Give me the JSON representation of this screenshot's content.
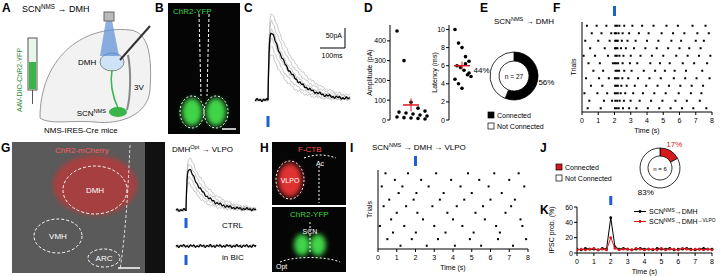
{
  "panels": {
    "A": {
      "letter": "A",
      "title": [
        {
          "t": "SCN"
        },
        {
          "t": "NMS",
          "sup": true
        },
        {
          "t": " → DMH"
        }
      ],
      "target": "DMH",
      "ventricle": "3V",
      "virus": "AAV-DIO-ChR2-YFP",
      "source": [
        {
          "t": "SCN"
        },
        {
          "t": "NMS",
          "sup": true
        }
      ],
      "mice": "NMS-IRES-Cre mice"
    },
    "B": {
      "letter": "B",
      "label": "ChR2-YFP"
    },
    "C": {
      "letter": "C",
      "scale_current": "50pA",
      "scale_time": "100ms"
    },
    "G": {
      "letter": "G",
      "label": "ChR2-mCherry",
      "regions": [
        "DMH",
        "VMH",
        "ARC"
      ],
      "trace_title": [
        {
          "t": "DMH"
        },
        {
          "t": "Opt",
          "sup": true
        },
        {
          "t": " → VLPO"
        }
      ],
      "control": "CTRL",
      "drug": "in BIC"
    },
    "H": {
      "letter": "H",
      "tracer": "F-CTB",
      "tracer_regions": [
        "VLPO",
        "Ac"
      ],
      "label": "ChR2-YFP",
      "regions": [
        "SCN",
        "Opt"
      ]
    }
  },
  "chart_data": [
    {
      "type": "strip",
      "panel_label": "D",
      "ylabel": "Amplitude (pA)",
      "values": [
        450,
        300,
        90,
        60,
        45,
        40,
        35,
        30,
        25,
        20,
        15,
        12,
        10,
        8,
        5
      ],
      "mean": 76,
      "sem": 33,
      "ylim": [
        0,
        480
      ],
      "yticks": [
        0,
        100,
        200,
        300,
        400
      ],
      "color": "#000000"
    },
    {
      "type": "strip",
      "ylabel": "Latency (ms)",
      "values": [
        10,
        8.5,
        8,
        7,
        6.5,
        6,
        5.8,
        5.5,
        5,
        4.8,
        4.5,
        4,
        3.5,
        6.2,
        5.2
      ],
      "mean": 6.0,
      "sem": 0.45,
      "ylim": [
        0,
        10.5
      ],
      "yticks": [
        0,
        2,
        4,
        6,
        8,
        10
      ],
      "color": "#000000"
    },
    {
      "type": "pie",
      "panel_label": "E",
      "title": [
        {
          "t": "SCN"
        },
        {
          "t": "NMS",
          "sup": true
        },
        {
          "t": " → DMH"
        }
      ],
      "categories": [
        "Connected",
        "Not Connected"
      ],
      "values": [
        56,
        44
      ],
      "value_labels": [
        "56%",
        "44%"
      ],
      "colors": [
        "#000000",
        "#ffffff"
      ],
      "annotation": "n = 27",
      "data_labels": true
    },
    {
      "type": "raster",
      "panel_label": "F",
      "xlabel": "Time (s)",
      "ylabel": "Trials",
      "xlim": [
        0,
        8
      ],
      "xticks": [
        0,
        1,
        2,
        3,
        4,
        5,
        6,
        7,
        8
      ],
      "ylim": [
        0.5,
        12.5
      ],
      "tick_labels": "x",
      "stimulus": 2,
      "color": "#000000",
      "trials": [
        {
          "y": 1,
          "x": [
            0.3,
            0.9,
            1.5,
            2.05,
            2.15,
            2.3,
            2.6,
            3.1,
            3.7,
            4.4,
            5.2,
            5.9,
            6.8,
            7.6
          ]
        },
        {
          "y": 2,
          "x": [
            0.6,
            1.2,
            1.8,
            2.02,
            2.1,
            2.25,
            2.5,
            2.9,
            3.5,
            4.1,
            4.9,
            5.6,
            6.3,
            7.1,
            7.8
          ]
        },
        {
          "y": 3,
          "x": [
            0.2,
            1.0,
            1.7,
            2.04,
            2.12,
            2.2,
            2.45,
            2.8,
            3.3,
            4.0,
            4.7,
            5.5,
            6.1,
            7.0,
            7.5
          ]
        },
        {
          "y": 4,
          "x": [
            0.5,
            1.4,
            2.03,
            2.1,
            2.18,
            2.4,
            2.7,
            3.2,
            3.9,
            4.6,
            5.3,
            6.0,
            6.6,
            7.3
          ]
        },
        {
          "y": 5,
          "x": [
            0.1,
            0.8,
            1.6,
            2.05,
            2.14,
            2.3,
            2.55,
            3.0,
            3.6,
            4.3,
            5.0,
            5.8,
            6.5,
            7.2,
            7.9
          ]
        },
        {
          "y": 6,
          "x": [
            0.4,
            1.1,
            1.9,
            2.02,
            2.11,
            2.22,
            2.5,
            2.95,
            3.4,
            4.2,
            4.8,
            5.4,
            6.2,
            6.9,
            7.7
          ]
        },
        {
          "y": 7,
          "x": [
            0.7,
            1.3,
            2.06,
            2.16,
            2.28,
            2.6,
            3.05,
            3.8,
            4.5,
            5.1,
            5.7,
            6.4,
            7.4
          ]
        },
        {
          "y": 8,
          "x": [
            0.25,
            1.05,
            1.65,
            2.03,
            2.13,
            2.24,
            2.48,
            2.85,
            3.45,
            4.15,
            4.85,
            5.65,
            6.35,
            7.05,
            7.85
          ]
        },
        {
          "y": 9,
          "x": [
            0.55,
            1.25,
            2.04,
            2.12,
            2.21,
            2.42,
            2.75,
            3.25,
            3.95,
            4.65,
            5.35,
            6.05,
            6.75,
            7.45
          ]
        },
        {
          "y": 10,
          "x": [
            0.15,
            0.95,
            1.55,
            2.02,
            2.1,
            2.2,
            2.38,
            2.66,
            3.15,
            3.75,
            4.45,
            5.15,
            5.95,
            6.7,
            7.35
          ]
        },
        {
          "y": 11,
          "x": [
            0.45,
            1.35,
            1.85,
            2.05,
            2.17,
            2.32,
            2.58,
            2.99,
            3.55,
            4.25,
            4.95,
            5.75,
            6.45,
            7.25
          ]
        },
        {
          "y": 12,
          "x": [
            0.35,
            1.15,
            2.03,
            2.14,
            2.26,
            2.52,
            2.9,
            3.35,
            4.05,
            4.75,
            5.45,
            6.15,
            6.85,
            7.65
          ]
        }
      ]
    },
    {
      "type": "raster",
      "panel_label": "I",
      "title": [
        {
          "t": "SCN"
        },
        {
          "t": "NMS",
          "sup": true
        },
        {
          "t": " → DMH → VLPO"
        }
      ],
      "xlabel": "Time (s)",
      "ylabel": "Trials",
      "xlim": [
        0,
        8
      ],
      "xticks": [
        0,
        1,
        2,
        3,
        4,
        5,
        6,
        7,
        8
      ],
      "ylim": [
        0.5,
        12.5
      ],
      "tick_labels": "x",
      "stimulus": 2,
      "color": "#000000",
      "trials": [
        {
          "y": 1,
          "x": [
            0.4,
            1.6,
            3.1,
            4.8,
            6.2,
            7.5
          ]
        },
        {
          "y": 2,
          "x": [
            0.9,
            2.3,
            3.9,
            5.4,
            7.0
          ]
        },
        {
          "y": 3,
          "x": [
            0.2,
            1.3,
            2.7,
            4.4,
            5.9,
            7.8
          ]
        },
        {
          "y": 4,
          "x": [
            1.1,
            2.05,
            3.5,
            5.0,
            6.6
          ]
        },
        {
          "y": 5,
          "x": [
            0.6,
            1.9,
            3.3,
            4.6,
            6.0,
            7.3
          ]
        },
        {
          "y": 6,
          "x": [
            0.3,
            1.5,
            2.9,
            4.2,
            5.6,
            7.1
          ]
        },
        {
          "y": 7,
          "x": [
            1.0,
            2.1,
            3.7,
            5.2,
            6.8
          ]
        },
        {
          "y": 8,
          "x": [
            0.7,
            2.4,
            4.0,
            5.7,
            7.6
          ]
        },
        {
          "y": 9,
          "x": [
            0.1,
            1.4,
            3.0,
            4.5,
            6.3,
            7.7
          ]
        },
        {
          "y": 10,
          "x": [
            0.8,
            2.02,
            3.6,
            5.1,
            6.5
          ]
        },
        {
          "y": 11,
          "x": [
            0.5,
            1.8,
            3.2,
            4.9,
            6.4,
            7.9
          ]
        },
        {
          "y": 12,
          "x": [
            1.2,
            2.6,
            4.1,
            5.5,
            7.2
          ]
        }
      ]
    },
    {
      "type": "pie",
      "panel_label": "J",
      "categories": [
        "Connected",
        "Not Connected"
      ],
      "values": [
        17,
        83
      ],
      "value_labels": [
        "17%",
        "83%"
      ],
      "colors": [
        "#d7191c",
        "#ffffff"
      ],
      "annotation": "n = 6",
      "data_labels": true
    },
    {
      "type": "line",
      "panel_label": "K",
      "xlabel": "Time (s)",
      "ylabel": "IPSC prob. (%)",
      "x": [
        0,
        0.25,
        0.5,
        0.75,
        1,
        1.25,
        1.5,
        1.75,
        2,
        2.25,
        2.5,
        2.75,
        3,
        3.25,
        3.5,
        3.75,
        4,
        4.25,
        4.5,
        4.75,
        5,
        5.25,
        5.5,
        5.75,
        6,
        6.25,
        6.5,
        6.75,
        7,
        7.25,
        7.5,
        7.75,
        8
      ],
      "xlim": [
        0,
        8
      ],
      "xticks": [
        0,
        1,
        2,
        3,
        4,
        5,
        6,
        7,
        8
      ],
      "ylim": [
        0,
        60
      ],
      "yticks": [
        0,
        20,
        40,
        60
      ],
      "stimulus": 2,
      "legend": "upper right",
      "marker": "circle",
      "series": [
        {
          "name": [
            {
              "t": "SCN"
            },
            {
              "t": "NMS",
              "sup": true
            },
            {
              "t": "→DMH"
            }
          ],
          "color": "#000000",
          "values": [
            5,
            4,
            6,
            5,
            5,
            4,
            6,
            5,
            46,
            8,
            5,
            6,
            5,
            4,
            5,
            6,
            5,
            5,
            4,
            6,
            5,
            5,
            6,
            4,
            5,
            5,
            6,
            5,
            4,
            5,
            6,
            5,
            5
          ]
        },
        {
          "name": [
            {
              "t": "SCN"
            },
            {
              "t": "NMS",
              "sup": true
            },
            {
              "t": "→DMH"
            },
            {
              "t": "→VLPO",
              "sup": true
            }
          ],
          "color": "#d7191c",
          "values": [
            4,
            5,
            4,
            5,
            6,
            4,
            5,
            4,
            20,
            6,
            4,
            5,
            5,
            4,
            6,
            5,
            4,
            5,
            5,
            4,
            6,
            4,
            5,
            5,
            4,
            6,
            5,
            4,
            5,
            5,
            4,
            5,
            4
          ]
        }
      ]
    }
  ]
}
